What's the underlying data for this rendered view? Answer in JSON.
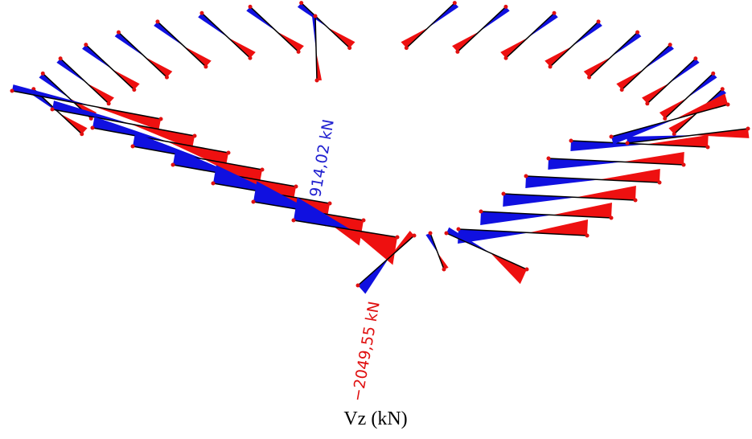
{
  "diagram": {
    "labels": {
      "max_value": "914,02 kN",
      "min_value": "−2049,55 kN"
    },
    "caption": "Vz (kN)"
  }
}
